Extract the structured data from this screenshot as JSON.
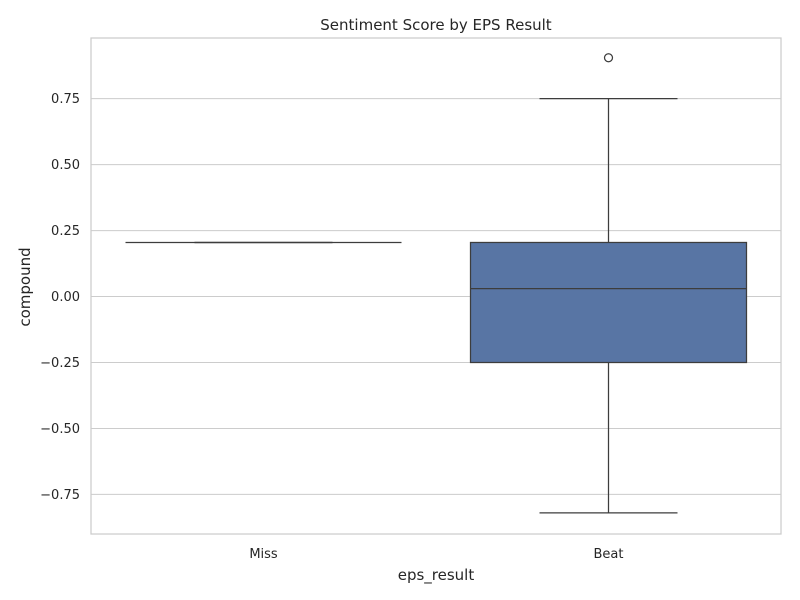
{
  "chart_data": {
    "type": "box",
    "title": "Sentiment Score by EPS Result",
    "xlabel": "eps_result",
    "ylabel": "compound",
    "categories": [
      "Miss",
      "Beat"
    ],
    "ylim": [
      -0.9,
      0.98
    ],
    "yticks": [
      -0.75,
      -0.5,
      -0.25,
      0.0,
      0.25,
      0.5,
      0.75
    ],
    "ytick_labels": [
      "−0.75",
      "−0.50",
      "−0.25",
      "0.00",
      "0.25",
      "0.50",
      "0.75"
    ],
    "grid": true,
    "boxes": [
      {
        "category": "Miss",
        "whisker_low": 0.205,
        "q1": 0.205,
        "median": 0.205,
        "q3": 0.205,
        "whisker_high": 0.205,
        "outliers": []
      },
      {
        "category": "Beat",
        "whisker_low": -0.82,
        "q1": -0.25,
        "median": 0.03,
        "q3": 0.205,
        "whisker_high": 0.75,
        "outliers": [
          0.905
        ]
      }
    ],
    "colors": {
      "box_fill": "#5875a4",
      "line": "#3d3d3d",
      "grid": "#cccccc",
      "frame": "#cccccc"
    }
  }
}
